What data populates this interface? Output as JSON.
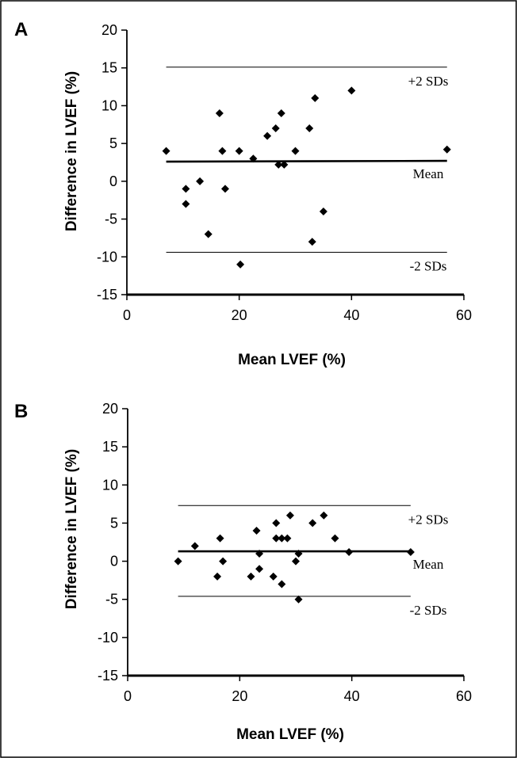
{
  "chart_data": [
    {
      "type": "scatter",
      "panel_label": "A",
      "xlabel": "Mean LVEF (%)",
      "ylabel": "Difference in LVEF (%)",
      "xlim": [
        0,
        60
      ],
      "ylim": [
        -15,
        20
      ],
      "x_ticks": [
        0,
        20,
        40,
        60
      ],
      "y_ticks": [
        -15,
        -10,
        -5,
        0,
        5,
        10,
        15,
        20
      ],
      "grid": false,
      "reference_lines": [
        {
          "label": "+2 SDs",
          "y": 15.1,
          "style": "thin"
        },
        {
          "label": "Mean",
          "y": 2.6,
          "y_end": 2.7,
          "style": "thick"
        },
        {
          "label": "-2 SDs",
          "y": -9.4,
          "style": "thin"
        }
      ],
      "points": [
        {
          "x": 7,
          "y": 4
        },
        {
          "x": 10.5,
          "y": -1
        },
        {
          "x": 10.5,
          "y": -3
        },
        {
          "x": 13,
          "y": 0
        },
        {
          "x": 14.5,
          "y": -7
        },
        {
          "x": 16.5,
          "y": 9
        },
        {
          "x": 17,
          "y": 4
        },
        {
          "x": 17.5,
          "y": -1
        },
        {
          "x": 20,
          "y": 4
        },
        {
          "x": 20.2,
          "y": -11
        },
        {
          "x": 22.5,
          "y": 3
        },
        {
          "x": 25,
          "y": 6
        },
        {
          "x": 26.5,
          "y": 7
        },
        {
          "x": 27,
          "y": 2.2
        },
        {
          "x": 27.5,
          "y": 9
        },
        {
          "x": 28,
          "y": 2.2
        },
        {
          "x": 30,
          "y": 4
        },
        {
          "x": 32.5,
          "y": 7
        },
        {
          "x": 33,
          "y": -8
        },
        {
          "x": 33.5,
          "y": 11
        },
        {
          "x": 35,
          "y": -4
        },
        {
          "x": 40,
          "y": 12
        },
        {
          "x": 57,
          "y": 4.2
        }
      ]
    },
    {
      "type": "scatter",
      "panel_label": "B",
      "xlabel": "Mean LVEF (%)",
      "ylabel": "Difference in LVEF (%)",
      "xlim": [
        0,
        60
      ],
      "ylim": [
        -15,
        20
      ],
      "x_ticks": [
        0,
        20,
        40,
        60
      ],
      "y_ticks": [
        -15,
        -10,
        -5,
        0,
        5,
        10,
        15,
        20
      ],
      "grid": false,
      "reference_lines": [
        {
          "label": "+2 SDs",
          "y": 7.3,
          "style": "thin"
        },
        {
          "label": "Mean",
          "y": 1.3,
          "style": "thick"
        },
        {
          "label": "-2 SDs",
          "y": -4.6,
          "style": "thin"
        }
      ],
      "points": [
        {
          "x": 9,
          "y": 0
        },
        {
          "x": 12,
          "y": 2
        },
        {
          "x": 16,
          "y": -2
        },
        {
          "x": 16.5,
          "y": 3
        },
        {
          "x": 17,
          "y": 0
        },
        {
          "x": 22,
          "y": -2
        },
        {
          "x": 23,
          "y": 4
        },
        {
          "x": 23.5,
          "y": 1
        },
        {
          "x": 23.5,
          "y": -1
        },
        {
          "x": 26,
          "y": -2
        },
        {
          "x": 26.5,
          "y": 5
        },
        {
          "x": 26.5,
          "y": 3
        },
        {
          "x": 27.5,
          "y": 3
        },
        {
          "x": 27.5,
          "y": -3
        },
        {
          "x": 28.5,
          "y": 3
        },
        {
          "x": 29,
          "y": 6
        },
        {
          "x": 30,
          "y": 0
        },
        {
          "x": 30.5,
          "y": 1
        },
        {
          "x": 30.5,
          "y": -5
        },
        {
          "x": 33,
          "y": 5
        },
        {
          "x": 35,
          "y": 6
        },
        {
          "x": 37,
          "y": 3
        },
        {
          "x": 39.5,
          "y": 1.2
        },
        {
          "x": 50.5,
          "y": 1.2
        }
      ]
    }
  ]
}
